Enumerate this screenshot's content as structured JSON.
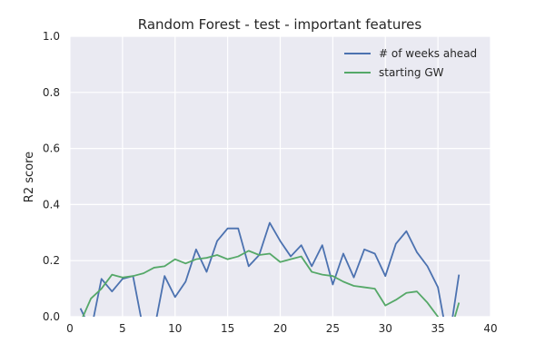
{
  "chart_data": {
    "type": "line",
    "title": "Random Forest - test - important features",
    "xlabel": "",
    "ylabel": "R2 score",
    "xlim": [
      0,
      40
    ],
    "ylim": [
      0.0,
      1.0
    ],
    "xticks": [
      "0",
      "5",
      "10",
      "15",
      "20",
      "25",
      "30",
      "35",
      "40"
    ],
    "yticks": [
      "0.0",
      "0.2",
      "0.4",
      "0.6",
      "0.8",
      "1.0"
    ],
    "grid": true,
    "legend": "top-right",
    "x": [
      1,
      2,
      3,
      4,
      5,
      6,
      7,
      8,
      9,
      10,
      11,
      12,
      13,
      14,
      15,
      16,
      17,
      18,
      19,
      20,
      21,
      22,
      23,
      24,
      25,
      26,
      27,
      28,
      29,
      30,
      31,
      32,
      33,
      34,
      35,
      36,
      37
    ],
    "series": [
      {
        "name": "# of weeks ahead",
        "color": "#4c72b0",
        "values": [
          0.03,
          -0.05,
          0.135,
          0.09,
          0.135,
          0.145,
          -0.05,
          -0.05,
          0.145,
          0.07,
          0.125,
          0.24,
          0.16,
          0.27,
          0.315,
          0.315,
          0.18,
          0.22,
          0.335,
          0.27,
          0.215,
          0.255,
          0.18,
          0.255,
          0.115,
          0.225,
          0.14,
          0.24,
          0.225,
          0.145,
          0.26,
          0.305,
          0.23,
          0.18,
          0.105,
          -0.1,
          0.15
        ]
      },
      {
        "name": "starting GW",
        "color": "#55a868",
        "values": [
          -0.02,
          0.065,
          0.1,
          0.15,
          0.14,
          0.145,
          0.155,
          0.175,
          0.18,
          0.205,
          0.19,
          0.205,
          0.21,
          0.22,
          0.205,
          0.215,
          0.235,
          0.22,
          0.225,
          0.195,
          0.205,
          0.215,
          0.16,
          0.15,
          0.145,
          0.125,
          0.11,
          0.105,
          0.1,
          0.04,
          0.06,
          0.085,
          0.09,
          0.05,
          0.0,
          -0.08,
          0.05
        ]
      }
    ]
  }
}
